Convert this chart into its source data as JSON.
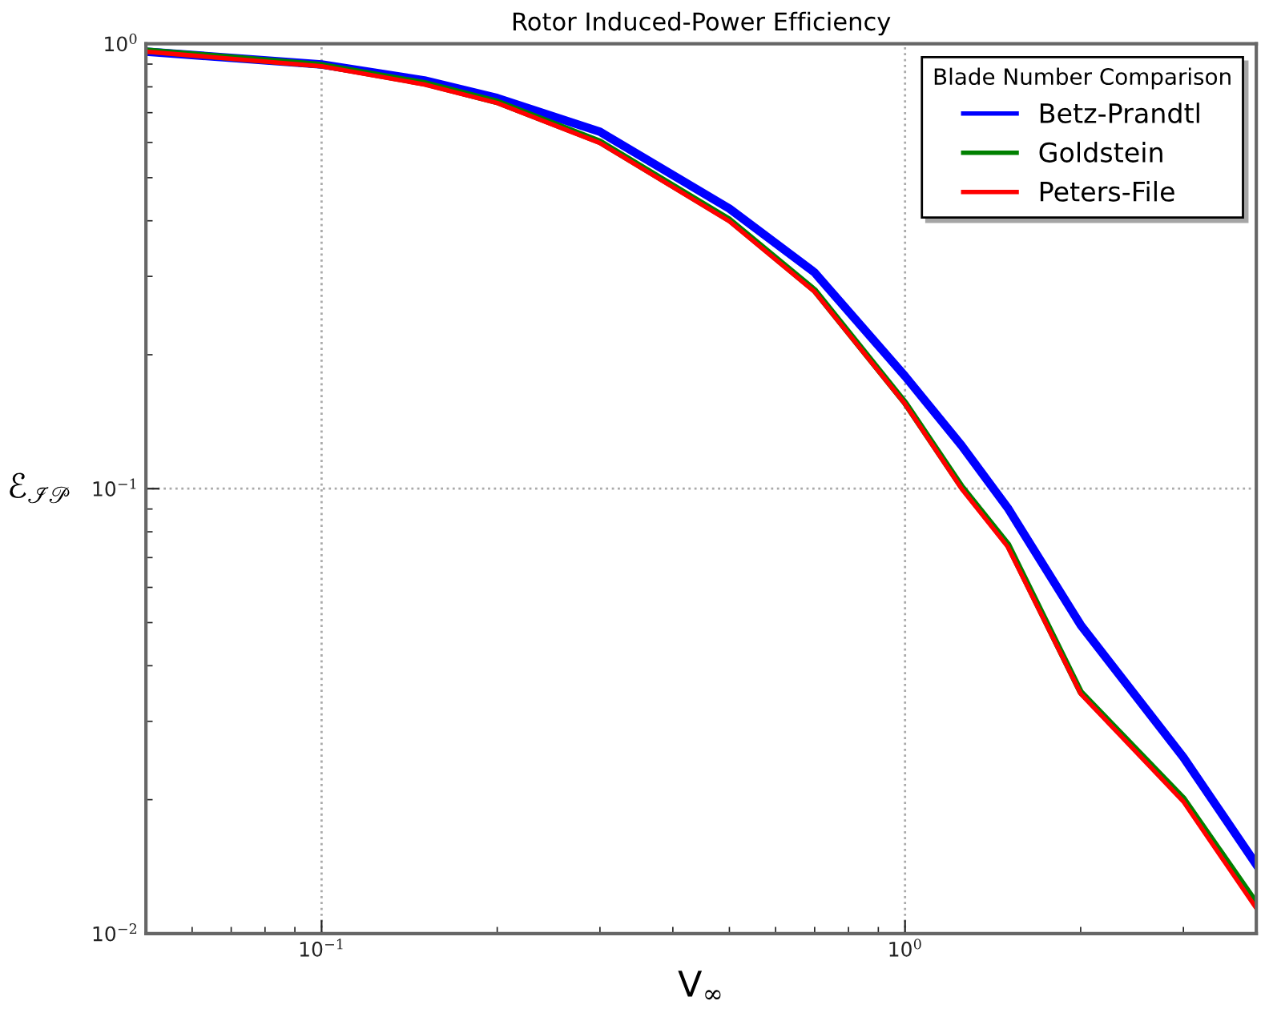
{
  "chart_data": {
    "type": "line",
    "title": "Rotor Induced-Power Efficiency",
    "xlabel": "V$_{∞}$",
    "ylabel": "ℰ$_{ℐ𝒫}$",
    "legend_title": "Blade Number Comparison",
    "x": [
      0.05,
      0.1,
      0.15,
      0.2,
      0.3,
      0.5,
      0.7,
      1,
      1.25,
      1.5,
      2,
      3,
      4
    ],
    "series": [
      {
        "name": "Betz-Prandtl",
        "color": "#0000ff",
        "values": [
          0.96,
          0.898,
          0.827,
          0.755,
          0.634,
          0.426,
          0.306,
          0.179,
          0.125,
          0.0905,
          0.0494,
          0.0249,
          0.0143
        ]
      },
      {
        "name": "Goldstein",
        "color": "#008000",
        "values": [
          0.965,
          0.895,
          0.815,
          0.74,
          0.602,
          0.402,
          0.279,
          0.156,
          0.101,
          0.075,
          0.0349,
          0.0201,
          0.0117
        ]
      },
      {
        "name": "Peters-File",
        "color": "#ff0000",
        "values": [
          0.96,
          0.89,
          0.81,
          0.736,
          0.598,
          0.399,
          0.277,
          0.155,
          0.1,
          0.074,
          0.0346,
          0.0198,
          0.0114
        ]
      }
    ],
    "log": "xy",
    "xlim": [
      0.05,
      4
    ],
    "ylim": [
      0.01,
      1
    ],
    "xticks": [
      {
        "value": 0.1,
        "label": "10$^{−1}$"
      },
      {
        "value": 1,
        "label": "10$^{0}$"
      }
    ],
    "yticks": [
      {
        "value": 0.01,
        "label": "10$^{−2}$"
      },
      {
        "value": 0.1,
        "label": "10$^{−1}$"
      },
      {
        "value": 1,
        "label": "10$^{0}$"
      }
    ],
    "grid": true,
    "legend": "top right",
    "marker": "none",
    "line_style": "solid"
  }
}
